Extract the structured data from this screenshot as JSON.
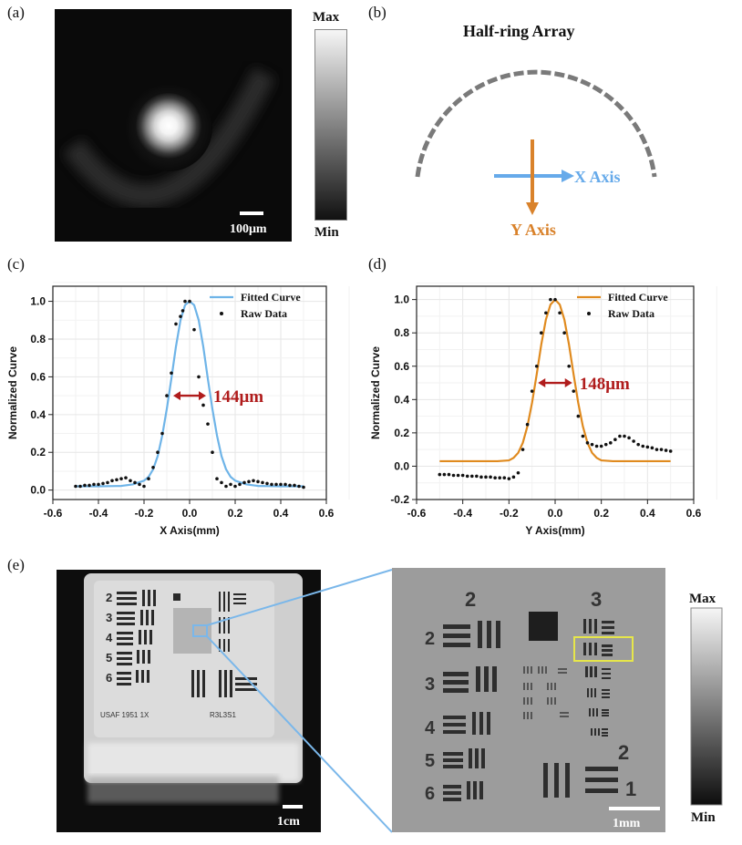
{
  "panels": {
    "a": {
      "label": "(a)",
      "colorbar_max": "Max",
      "colorbar_min": "Min",
      "scalebar": "100μm",
      "colors": {
        "image_bg": "#0a0a0a"
      }
    },
    "b": {
      "label": "(b)",
      "title": "Half-ring Array",
      "x_axis": "X Axis",
      "y_axis": "Y Axis",
      "colors": {
        "x": "#66aaea",
        "y": "#d9822b",
        "ring": "#777777"
      }
    },
    "c": {
      "label": "(c)"
    },
    "d": {
      "label": "(d)"
    },
    "e": {
      "label": "(e)",
      "scalebar_left": "1cm",
      "scalebar_right": "1mm",
      "colorbar_max": "Max",
      "colorbar_min": "Min",
      "group_labels": [
        "2",
        "3",
        "2",
        "1"
      ],
      "element_labels": [
        "2",
        "3",
        "4",
        "5",
        "6"
      ],
      "colors": {
        "zoom_lines": "#7ab7ea",
        "highlight": "#e6e64a"
      }
    }
  },
  "chart_data": [
    {
      "panel": "c",
      "type": "line",
      "xlabel": "X Axis(mm)",
      "ylabel": "Normalized Curve",
      "xlim": [
        -0.6,
        0.6
      ],
      "ylim": [
        -0.05,
        1.08
      ],
      "xticks": [
        -0.6,
        -0.4,
        -0.2,
        0.0,
        0.2,
        0.4,
        0.6
      ],
      "yticks": [
        0.0,
        0.2,
        0.4,
        0.6,
        0.8,
        1.0
      ],
      "xtick_labels": [
        "-0.6",
        "-0.4",
        "-0.2",
        "0.0",
        "0.2",
        "0.4",
        "0.6"
      ],
      "ytick_labels": [
        "0.0",
        "0.2",
        "0.4",
        "0.6",
        "0.8",
        "1.0"
      ],
      "grid": true,
      "legend": {
        "position": "top-right",
        "entries": [
          "Fitted Curve",
          "Raw Data"
        ]
      },
      "annotation": "144μm",
      "fwhm_mm": [
        -0.072,
        0.072
      ],
      "series": [
        {
          "name": "Fitted Curve",
          "kind": "line",
          "color": "#6eb4e8",
          "x": [
            -0.5,
            -0.45,
            -0.4,
            -0.35,
            -0.3,
            -0.25,
            -0.2,
            -0.18,
            -0.16,
            -0.14,
            -0.12,
            -0.1,
            -0.08,
            -0.06,
            -0.04,
            -0.02,
            0.0,
            0.02,
            0.04,
            0.06,
            0.08,
            0.1,
            0.12,
            0.14,
            0.16,
            0.18,
            0.2,
            0.25,
            0.3,
            0.35,
            0.4,
            0.45,
            0.5
          ],
          "y": [
            0.02,
            0.02,
            0.02,
            0.021,
            0.022,
            0.03,
            0.05,
            0.07,
            0.11,
            0.18,
            0.29,
            0.43,
            0.59,
            0.76,
            0.9,
            0.98,
            1.0,
            0.98,
            0.9,
            0.76,
            0.59,
            0.43,
            0.29,
            0.18,
            0.11,
            0.07,
            0.05,
            0.03,
            0.022,
            0.021,
            0.02,
            0.02,
            0.02
          ]
        },
        {
          "name": "Raw Data",
          "kind": "scatter",
          "color": "#111111",
          "x": [
            -0.5,
            -0.48,
            -0.46,
            -0.44,
            -0.42,
            -0.4,
            -0.38,
            -0.36,
            -0.34,
            -0.32,
            -0.3,
            -0.28,
            -0.26,
            -0.24,
            -0.22,
            -0.2,
            -0.18,
            -0.16,
            -0.14,
            -0.12,
            -0.1,
            -0.08,
            -0.06,
            -0.04,
            -0.03,
            -0.02,
            0.0,
            0.02,
            0.04,
            0.06,
            0.08,
            0.1,
            0.12,
            0.14,
            0.16,
            0.18,
            0.2,
            0.22,
            0.24,
            0.26,
            0.28,
            0.3,
            0.32,
            0.34,
            0.36,
            0.38,
            0.4,
            0.42,
            0.44,
            0.46,
            0.48,
            0.5
          ],
          "y": [
            0.02,
            0.02,
            0.025,
            0.025,
            0.03,
            0.03,
            0.035,
            0.04,
            0.05,
            0.055,
            0.06,
            0.065,
            0.05,
            0.04,
            0.03,
            0.02,
            0.06,
            0.12,
            0.2,
            0.3,
            0.5,
            0.62,
            0.88,
            0.92,
            0.95,
            1.0,
            1.0,
            0.85,
            0.6,
            0.45,
            0.35,
            0.2,
            0.06,
            0.04,
            0.02,
            0.03,
            0.02,
            0.03,
            0.04,
            0.045,
            0.05,
            0.045,
            0.04,
            0.035,
            0.03,
            0.03,
            0.03,
            0.03,
            0.025,
            0.025,
            0.02,
            0.015
          ]
        }
      ]
    },
    {
      "panel": "d",
      "type": "line",
      "xlabel": "Y Axis(mm)",
      "ylabel": "Normalized Curve",
      "xlim": [
        -0.6,
        0.6
      ],
      "ylim": [
        -0.2,
        1.08
      ],
      "xticks": [
        -0.6,
        -0.4,
        -0.2,
        0.0,
        0.2,
        0.4,
        0.6
      ],
      "yticks": [
        -0.2,
        0.0,
        0.2,
        0.4,
        0.6,
        0.8,
        1.0
      ],
      "xtick_labels": [
        "-0.6",
        "-0.4",
        "-0.2",
        "0.0",
        "0.2",
        "0.4",
        "0.6"
      ],
      "ytick_labels": [
        "-0.2",
        "0.0",
        "0.2",
        "0.4",
        "0.6",
        "0.8",
        "1.0"
      ],
      "grid": true,
      "legend": {
        "position": "top-right",
        "entries": [
          "Fitted Curve",
          "Raw Data"
        ]
      },
      "annotation": "148μm",
      "fwhm_mm": [
        -0.074,
        0.074
      ],
      "series": [
        {
          "name": "Fitted Curve",
          "kind": "line",
          "color": "#e08a1e",
          "x": [
            -0.5,
            -0.4,
            -0.3,
            -0.25,
            -0.2,
            -0.18,
            -0.16,
            -0.14,
            -0.12,
            -0.1,
            -0.08,
            -0.06,
            -0.04,
            -0.02,
            0.0,
            0.02,
            0.04,
            0.06,
            0.08,
            0.1,
            0.12,
            0.14,
            0.16,
            0.18,
            0.2,
            0.25,
            0.3,
            0.4,
            0.5
          ],
          "y": [
            0.03,
            0.03,
            0.03,
            0.03,
            0.035,
            0.05,
            0.08,
            0.14,
            0.24,
            0.38,
            0.55,
            0.73,
            0.88,
            0.97,
            1.0,
            0.97,
            0.88,
            0.73,
            0.55,
            0.38,
            0.24,
            0.14,
            0.08,
            0.05,
            0.035,
            0.03,
            0.03,
            0.03,
            0.03
          ]
        },
        {
          "name": "Raw Data",
          "kind": "scatter",
          "color": "#111111",
          "x": [
            -0.5,
            -0.48,
            -0.46,
            -0.44,
            -0.42,
            -0.4,
            -0.38,
            -0.36,
            -0.34,
            -0.32,
            -0.3,
            -0.28,
            -0.26,
            -0.24,
            -0.22,
            -0.2,
            -0.18,
            -0.16,
            -0.14,
            -0.12,
            -0.1,
            -0.08,
            -0.06,
            -0.04,
            -0.02,
            0.0,
            0.02,
            0.04,
            0.06,
            0.08,
            0.1,
            0.12,
            0.14,
            0.16,
            0.18,
            0.2,
            0.22,
            0.24,
            0.26,
            0.28,
            0.3,
            0.32,
            0.34,
            0.36,
            0.38,
            0.4,
            0.42,
            0.44,
            0.46,
            0.48,
            0.5
          ],
          "y": [
            -0.05,
            -0.05,
            -0.05,
            -0.055,
            -0.055,
            -0.055,
            -0.06,
            -0.06,
            -0.06,
            -0.065,
            -0.065,
            -0.065,
            -0.07,
            -0.07,
            -0.07,
            -0.075,
            -0.065,
            -0.04,
            0.1,
            0.25,
            0.45,
            0.6,
            0.8,
            0.92,
            1.0,
            1.0,
            0.92,
            0.8,
            0.6,
            0.45,
            0.3,
            0.18,
            0.14,
            0.13,
            0.12,
            0.12,
            0.13,
            0.14,
            0.16,
            0.18,
            0.18,
            0.17,
            0.15,
            0.13,
            0.12,
            0.115,
            0.11,
            0.1,
            0.1,
            0.095,
            0.09
          ]
        }
      ]
    }
  ]
}
